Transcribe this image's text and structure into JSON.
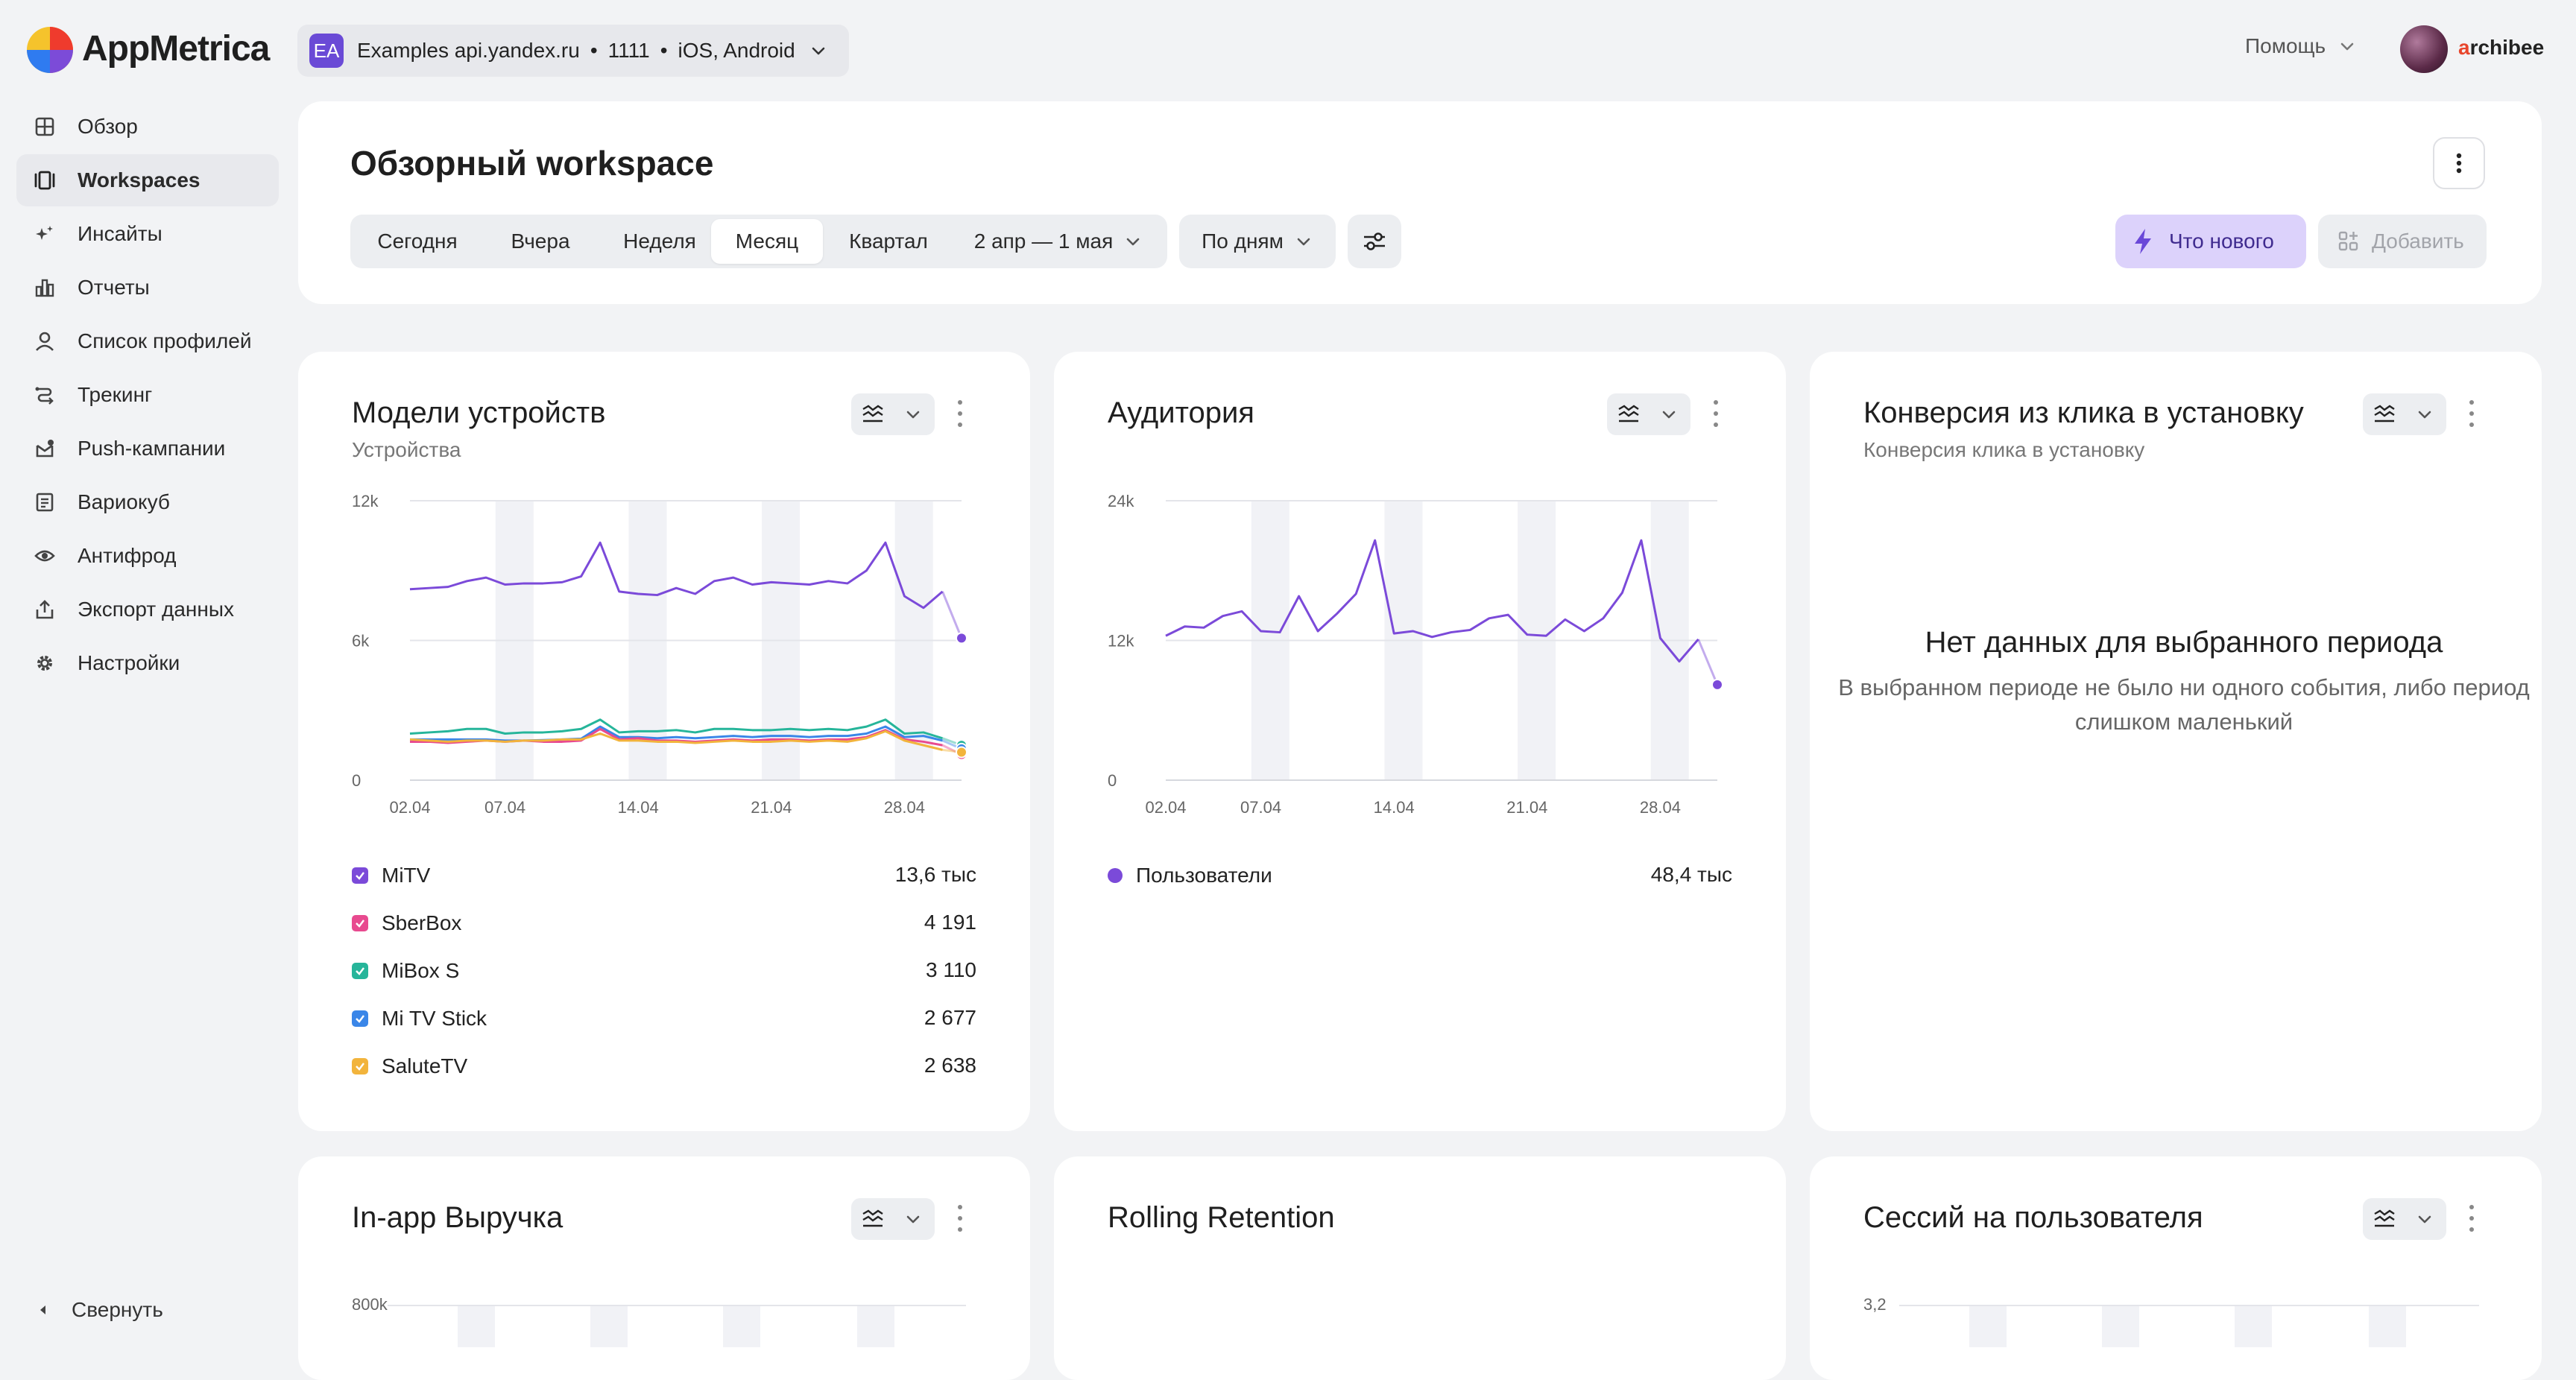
{
  "topbar": {
    "brand": "AppMetrica",
    "app_selector": {
      "badge": "EA",
      "name": "Examples api.yandex.ru",
      "id": "1111",
      "platforms": "iOS, Android",
      "sep": "•"
    },
    "help_label": "Помощь",
    "user": {
      "first_letter": "a",
      "rest": "rchibee"
    }
  },
  "sidebar": {
    "items": [
      {
        "label": "Обзор",
        "icon": "grid-icon"
      },
      {
        "label": "Workspaces",
        "icon": "workspaces-icon",
        "active": true
      },
      {
        "label": "Инсайты",
        "icon": "sparkle-icon"
      },
      {
        "label": "Отчеты",
        "icon": "bar-chart-icon"
      },
      {
        "label": "Список профилей",
        "icon": "user-icon"
      },
      {
        "label": "Трекинг",
        "icon": "tracking-icon"
      },
      {
        "label": "Push-кампании",
        "icon": "push-icon"
      },
      {
        "label": "Вариокуб",
        "icon": "variocube-icon"
      },
      {
        "label": "Антифрод",
        "icon": "eye-icon"
      },
      {
        "label": "Экспорт данных",
        "icon": "export-icon"
      },
      {
        "label": "Настройки",
        "icon": "gear-icon"
      }
    ],
    "collapse_label": "Свернуть"
  },
  "workspace": {
    "title": "Обзорный workspace",
    "periods": [
      "Сегодня",
      "Вчера",
      "Неделя",
      "Месяц",
      "Квартал"
    ],
    "active_period": "Месяц",
    "date_range": "2 апр — 1 мая",
    "grouping": "По дням",
    "whats_new": "Что нового",
    "add": "Добавить"
  },
  "cards": {
    "devices": {
      "title": "Модели устройств",
      "subtitle": "Устройства",
      "legend": [
        {
          "name": "MiTV",
          "value": "13,6 тыс",
          "color": "#7b4ad9"
        },
        {
          "name": "SberBox",
          "value": "4 191",
          "color": "#e84a8f"
        },
        {
          "name": "MiBox S",
          "value": "3 110",
          "color": "#26b59a"
        },
        {
          "name": "Mi TV Stick",
          "value": "2 677",
          "color": "#3a86e8"
        },
        {
          "name": "SaluteTV",
          "value": "2 638",
          "color": "#f2b43c"
        }
      ]
    },
    "audience": {
      "title": "Аудитория",
      "legend": [
        {
          "name": "Пользователи",
          "value": "48,4 тыс",
          "color": "#7b4ad9"
        }
      ]
    },
    "conversion": {
      "title": "Конверсия из клика в установку",
      "subtitle": "Конверсия клика в установку",
      "no_data_title": "Нет данных для выбранного периода",
      "no_data_text": "В выбранном периоде не было ни одного события, либо период слишком маленький"
    },
    "revenue": {
      "title": "In-app Выручка",
      "y_top": "800k"
    },
    "retention": {
      "title": "Rolling Retention"
    },
    "sessions": {
      "title": "Сессий на пользователя",
      "y_top": "3,2"
    }
  },
  "chart_data": [
    {
      "type": "line",
      "title": "Модели устройств",
      "x": [
        "02.04",
        "03.04",
        "04.04",
        "05.04",
        "06.04",
        "07.04",
        "08.04",
        "09.04",
        "10.04",
        "11.04",
        "12.04",
        "13.04",
        "14.04",
        "15.04",
        "16.04",
        "17.04",
        "18.04",
        "19.04",
        "20.04",
        "21.04",
        "22.04",
        "23.04",
        "24.04",
        "25.04",
        "26.04",
        "27.04",
        "28.04",
        "29.04",
        "30.04",
        "01.05"
      ],
      "x_ticks": [
        "02.04",
        "07.04",
        "14.04",
        "21.04",
        "28.04"
      ],
      "y_ticks": [
        "0",
        "6k",
        "12k"
      ],
      "ylim": [
        0,
        12000
      ],
      "series": [
        {
          "name": "MiTV",
          "color": "#7b4ad9",
          "values": [
            8200,
            8250,
            8300,
            8550,
            8700,
            8400,
            8450,
            8450,
            8500,
            8750,
            10200,
            8100,
            8000,
            7950,
            8250,
            8000,
            8550,
            8700,
            8400,
            8500,
            8450,
            8400,
            8550,
            8450,
            9000,
            10200,
            7900,
            7400,
            8100,
            6100
          ]
        },
        {
          "name": "MiBox S",
          "color": "#26b59a",
          "values": [
            2000,
            2050,
            2100,
            2200,
            2200,
            2000,
            2050,
            2050,
            2100,
            2200,
            2600,
            2050,
            2100,
            2100,
            2150,
            2050,
            2200,
            2200,
            2150,
            2150,
            2200,
            2150,
            2200,
            2150,
            2300,
            2600,
            2000,
            2050,
            1800,
            1500
          ]
        },
        {
          "name": "Mi TV Stick",
          "color": "#3a86e8",
          "values": [
            1750,
            1750,
            1750,
            1750,
            1750,
            1700,
            1700,
            1720,
            1750,
            1780,
            2300,
            1850,
            1850,
            1800,
            1850,
            1800,
            1850,
            1900,
            1850,
            1900,
            1900,
            1850,
            1900,
            1900,
            2000,
            2300,
            1850,
            1900,
            1700,
            1350
          ]
        },
        {
          "name": "SberBox",
          "color": "#e84a8f",
          "values": [
            1650,
            1650,
            1600,
            1650,
            1700,
            1650,
            1700,
            1650,
            1650,
            1700,
            2200,
            1750,
            1800,
            1700,
            1700,
            1650,
            1700,
            1750,
            1700,
            1750,
            1750,
            1700,
            1750,
            1750,
            1850,
            2150,
            1750,
            1650,
            1500,
            1100
          ]
        },
        {
          "name": "SaluteTV",
          "color": "#f2b43c",
          "values": [
            1750,
            1700,
            1650,
            1700,
            1700,
            1650,
            1700,
            1700,
            1750,
            1750,
            2000,
            1700,
            1700,
            1650,
            1650,
            1600,
            1650,
            1700,
            1650,
            1650,
            1700,
            1650,
            1700,
            1650,
            1800,
            2100,
            1700,
            1500,
            1300,
            1200
          ]
        }
      ]
    },
    {
      "type": "line",
      "title": "Аудитория",
      "x": [
        "02.04",
        "03.04",
        "04.04",
        "05.04",
        "06.04",
        "07.04",
        "08.04",
        "09.04",
        "10.04",
        "11.04",
        "12.04",
        "13.04",
        "14.04",
        "15.04",
        "16.04",
        "17.04",
        "18.04",
        "19.04",
        "20.04",
        "21.04",
        "22.04",
        "23.04",
        "24.04",
        "25.04",
        "26.04",
        "27.04",
        "28.04",
        "29.04",
        "30.04",
        "01.05"
      ],
      "x_ticks": [
        "02.04",
        "07.04",
        "14.04",
        "21.04",
        "28.04"
      ],
      "y_ticks": [
        "0",
        "12k",
        "24k"
      ],
      "ylim": [
        0,
        24000
      ],
      "series": [
        {
          "name": "Пользователи",
          "color": "#7b4ad9",
          "values": [
            12400,
            13200,
            13100,
            14100,
            14500,
            12800,
            12700,
            15800,
            12800,
            14300,
            16000,
            20600,
            12600,
            12800,
            12300,
            12700,
            12900,
            13900,
            14200,
            12500,
            12400,
            13800,
            12800,
            13900,
            16100,
            20600,
            12200,
            10200,
            12100,
            8200
          ]
        }
      ]
    }
  ]
}
